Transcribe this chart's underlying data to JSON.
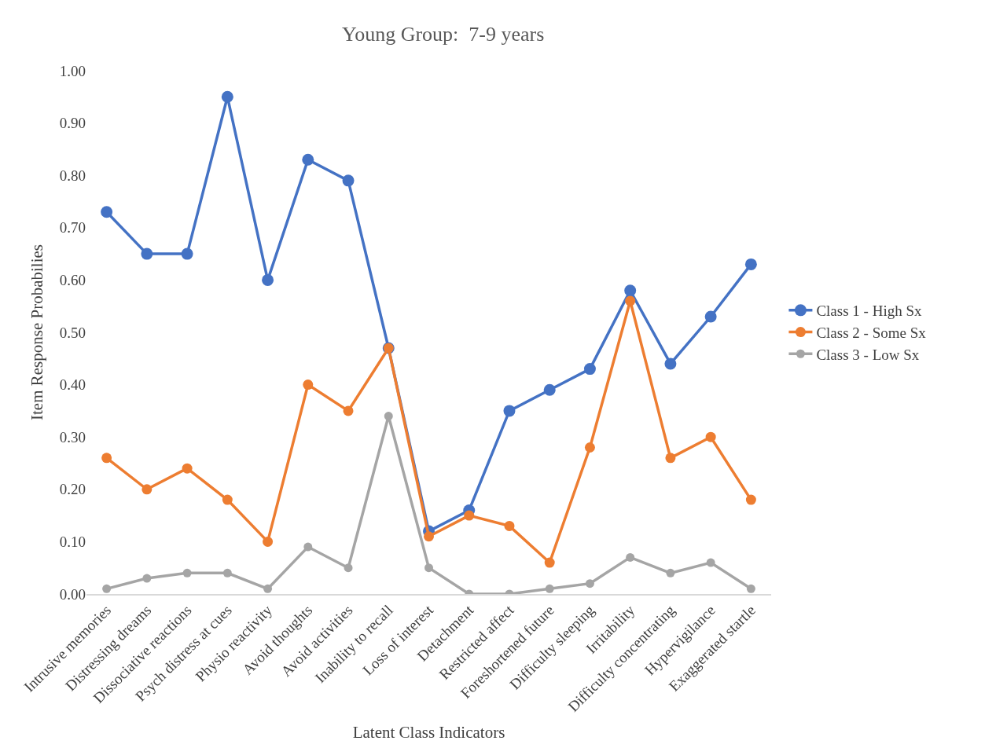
{
  "chart_data": {
    "type": "line",
    "title": "Young Group:  7-9 years",
    "xlabel": "Latent Class Indicators",
    "ylabel": "Item Response Probabilies",
    "categories": [
      "Intrusive memories",
      "Distressing dreams",
      "Dissociative reactions",
      "Psych distress at cues",
      "Physio reactivity",
      "Avoid thoughts",
      "Avoid activities",
      "Inability to recall",
      "Loss of interest",
      "Detachment",
      "Restricted affect",
      "Foreshortened future",
      "Difficulty sleeping",
      "Irritability",
      "Difficulty concentrating",
      "Hypervigilance",
      "Exaggerated startle"
    ],
    "series": [
      {
        "name": "Class 1 - High Sx",
        "color": "#4472c4",
        "values": [
          0.73,
          0.65,
          0.65,
          0.95,
          0.6,
          0.83,
          0.79,
          0.47,
          0.12,
          0.16,
          0.35,
          0.39,
          0.43,
          0.58,
          0.44,
          0.53,
          0.63
        ]
      },
      {
        "name": "Class 2 - Some Sx",
        "color": "#ed7d31",
        "values": [
          0.26,
          0.2,
          0.24,
          0.18,
          0.1,
          0.4,
          0.35,
          0.47,
          0.11,
          0.15,
          0.13,
          0.06,
          0.28,
          0.56,
          0.26,
          0.3,
          0.18
        ]
      },
      {
        "name": "Class 3 - Low Sx",
        "color": "#a5a5a5",
        "values": [
          0.01,
          0.03,
          0.04,
          0.04,
          0.01,
          0.09,
          0.05,
          0.34,
          0.05,
          0.0,
          0.0,
          0.01,
          0.02,
          0.07,
          0.04,
          0.06,
          0.01
        ]
      }
    ],
    "ylim": [
      0,
      1
    ],
    "yticks": [
      {
        "value": 0,
        "label": "0.00"
      },
      {
        "value": 0.1,
        "label": "0.10"
      },
      {
        "value": 0.2,
        "label": "0.20"
      },
      {
        "value": 0.3,
        "label": "0.30"
      },
      {
        "value": 0.4,
        "label": "0.40"
      },
      {
        "value": 0.5,
        "label": "0.50"
      },
      {
        "value": 0.6,
        "label": "0.60"
      },
      {
        "value": 0.7,
        "label": "0.70"
      },
      {
        "value": 0.8,
        "label": "0.80"
      },
      {
        "value": 0.9,
        "label": "0.90"
      },
      {
        "value": 1,
        "label": "1.00"
      }
    ],
    "grid": false,
    "legend": "right",
    "marker": "circle",
    "line_style": "solid"
  }
}
